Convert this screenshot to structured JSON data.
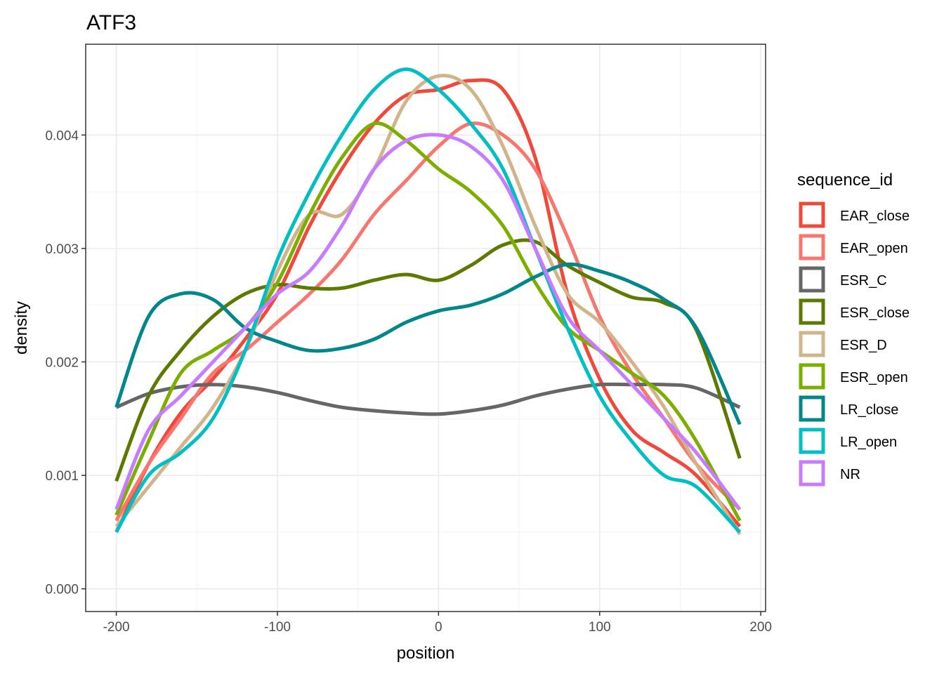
{
  "chart_data": {
    "type": "line",
    "title": "ATF3",
    "xlabel": "position",
    "ylabel": "density",
    "xlim": [
      -219,
      203
    ],
    "ylim": [
      -0.0002,
      0.0048
    ],
    "x_ticks": [
      -200,
      -100,
      0,
      100,
      200
    ],
    "x_tick_labels": [
      "-200",
      "-100",
      "0",
      "100",
      "200"
    ],
    "y_ticks": [
      0,
      0.001,
      0.002,
      0.003,
      0.004
    ],
    "y_tick_labels": [
      "0.000",
      "0.001",
      "0.002",
      "0.003",
      "0.004"
    ],
    "grid": true,
    "legend_title": "sequence_id",
    "legend_position": "right",
    "x": [
      -200,
      -180,
      -160,
      -140,
      -120,
      -100,
      -80,
      -60,
      -40,
      -20,
      0,
      20,
      40,
      60,
      80,
      100,
      120,
      140,
      160,
      187
    ],
    "series": [
      {
        "name": "EAR_close",
        "color": "#f0493b",
        "values": [
          0.0005,
          0.0011,
          0.00155,
          0.00185,
          0.0022,
          0.0026,
          0.0032,
          0.0037,
          0.0041,
          0.00435,
          0.0044,
          0.00448,
          0.0044,
          0.0038,
          0.0026,
          0.00185,
          0.0014,
          0.0012,
          0.001,
          0.00055
        ]
      },
      {
        "name": "EAR_open",
        "color": "#f8766d",
        "values": [
          0.0006,
          0.0011,
          0.0015,
          0.0019,
          0.0021,
          0.00235,
          0.0026,
          0.0029,
          0.0033,
          0.0036,
          0.0039,
          0.0041,
          0.004,
          0.0037,
          0.0031,
          0.0024,
          0.0019,
          0.0015,
          0.0011,
          0.0007
        ]
      },
      {
        "name": "ESR_C",
        "color": "#666666",
        "values": [
          0.0016,
          0.00172,
          0.00178,
          0.0018,
          0.00178,
          0.00173,
          0.00166,
          0.0016,
          0.00157,
          0.00155,
          0.00154,
          0.00157,
          0.00162,
          0.0017,
          0.00176,
          0.0018,
          0.0018,
          0.0018,
          0.00177,
          0.0016
        ]
      },
      {
        "name": "ESR_close",
        "color": "#5d7900",
        "values": [
          0.00095,
          0.0017,
          0.0021,
          0.0024,
          0.0026,
          0.00268,
          0.00265,
          0.00265,
          0.00272,
          0.00277,
          0.00272,
          0.00285,
          0.00303,
          0.00306,
          0.00285,
          0.0027,
          0.00257,
          0.00252,
          0.00228,
          0.00115
        ]
      },
      {
        "name": "ESR_D",
        "color": "#d2b48c",
        "values": [
          0.00055,
          0.0009,
          0.00125,
          0.0016,
          0.0021,
          0.0028,
          0.0033,
          0.0033,
          0.0037,
          0.0043,
          0.00452,
          0.0044,
          0.0039,
          0.0032,
          0.0026,
          0.00235,
          0.002,
          0.0016,
          0.0011,
          0.00048
        ]
      },
      {
        "name": "ESR_open",
        "color": "#7cae00",
        "values": [
          0.00065,
          0.0013,
          0.0019,
          0.0021,
          0.0023,
          0.0027,
          0.0033,
          0.0038,
          0.0041,
          0.00395,
          0.0037,
          0.0035,
          0.0032,
          0.0027,
          0.0023,
          0.0021,
          0.0019,
          0.0017,
          0.0013,
          0.0006
        ]
      },
      {
        "name": "LR_close",
        "color": "#00868b",
        "values": [
          0.0016,
          0.0024,
          0.0026,
          0.00255,
          0.0023,
          0.00218,
          0.0021,
          0.00212,
          0.0022,
          0.00235,
          0.00245,
          0.0025,
          0.0026,
          0.00275,
          0.00286,
          0.0028,
          0.0027,
          0.00255,
          0.0023,
          0.00145
        ]
      },
      {
        "name": "LR_open",
        "color": "#00bfc4",
        "values": [
          0.0005,
          0.001,
          0.0012,
          0.0015,
          0.0021,
          0.0029,
          0.0035,
          0.004,
          0.0044,
          0.00458,
          0.0044,
          0.0041,
          0.0037,
          0.003,
          0.0023,
          0.0017,
          0.0013,
          0.001,
          0.0009,
          0.0005
        ]
      },
      {
        "name": "NR",
        "color": "#c77cff",
        "values": [
          0.0007,
          0.0014,
          0.0017,
          0.002,
          0.0023,
          0.0026,
          0.0028,
          0.0032,
          0.0037,
          0.00395,
          0.004,
          0.0039,
          0.0036,
          0.003,
          0.0024,
          0.0021,
          0.0018,
          0.0015,
          0.0012,
          0.0007
        ]
      }
    ]
  }
}
